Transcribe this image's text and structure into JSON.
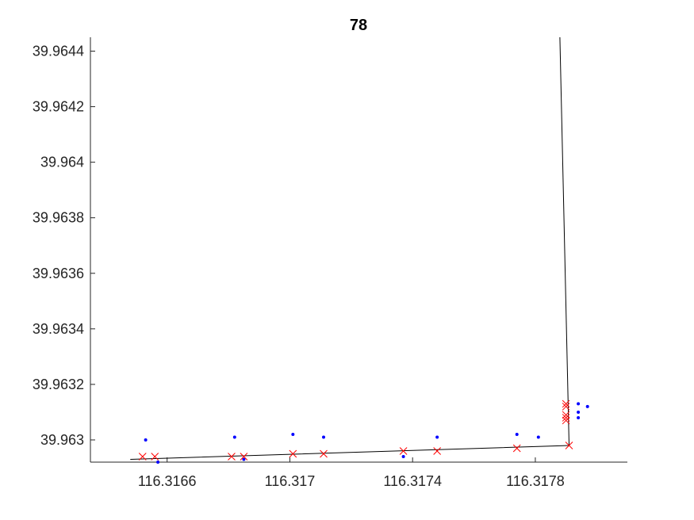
{
  "chart_data": {
    "type": "scatter",
    "title": "78",
    "xlabel": "",
    "ylabel": "",
    "xlim": [
      116.31635,
      116.3181
    ],
    "ylim": [
      39.96292,
      39.96445
    ],
    "grid": false,
    "x_ticks": [
      "116.3166",
      "116.317",
      "116.3174",
      "116.3178"
    ],
    "x_tick_values": [
      116.3166,
      116.317,
      116.3174,
      116.3178
    ],
    "y_ticks": [
      "39.963",
      "39.9632",
      "39.9634",
      "39.9636",
      "39.9638",
      "39.964",
      "39.9642",
      "39.9644"
    ],
    "y_tick_values": [
      39.963,
      39.9632,
      39.9634,
      39.9636,
      39.9638,
      39.964,
      39.9642,
      39.9644
    ],
    "series": [
      {
        "marker": "point",
        "color": "#0000ff",
        "points": [
          [
            116.31653,
            39.963
          ],
          [
            116.31657,
            39.96292
          ],
          [
            116.31682,
            39.96301
          ],
          [
            116.31685,
            39.96293
          ],
          [
            116.31701,
            39.96302
          ],
          [
            116.31711,
            39.96301
          ],
          [
            116.31737,
            39.96294
          ],
          [
            116.31748,
            39.96301
          ],
          [
            116.31774,
            39.96302
          ],
          [
            116.31781,
            39.96301
          ],
          [
            116.31794,
            39.96313
          ],
          [
            116.31794,
            39.9631
          ],
          [
            116.31797,
            39.96312
          ],
          [
            116.31794,
            39.96308
          ]
        ]
      },
      {
        "marker": "x",
        "color": "#ff0000",
        "points": [
          [
            116.31652,
            39.96294
          ],
          [
            116.31656,
            39.96294
          ],
          [
            116.31681,
            39.96294
          ],
          [
            116.31685,
            39.96294
          ],
          [
            116.31701,
            39.96295
          ],
          [
            116.31711,
            39.96295
          ],
          [
            116.31737,
            39.96296
          ],
          [
            116.31748,
            39.96296
          ],
          [
            116.31774,
            39.96297
          ],
          [
            116.31791,
            39.96298
          ],
          [
            116.3179,
            39.96313
          ],
          [
            116.3179,
            39.96312
          ],
          [
            116.3179,
            39.96309
          ],
          [
            116.3179,
            39.96308
          ],
          [
            116.3179,
            39.96307
          ]
        ]
      },
      {
        "marker": "line",
        "color": "#000000",
        "points": [
          [
            116.31648,
            39.96293
          ],
          [
            116.31791,
            39.96298
          ],
          [
            116.31788,
            39.96445
          ]
        ]
      }
    ]
  }
}
